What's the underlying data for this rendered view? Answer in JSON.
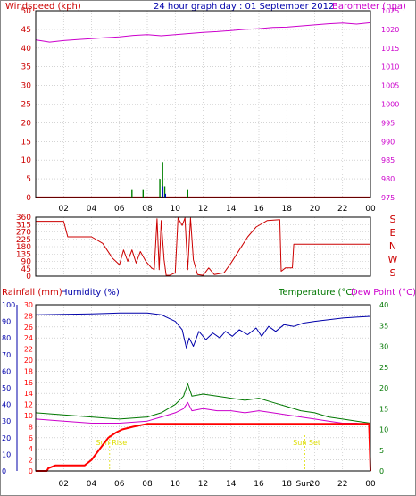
{
  "colors": {
    "wind": "#cc0000",
    "gust": "#008000",
    "wind_avg": "#0000cc",
    "barometer": "#cc00cc",
    "direction": "#cc0000",
    "rainfall": "#ff0000",
    "humidity": "#0000aa",
    "temperature": "#007700",
    "dewpoint": "#cc00cc",
    "sun": "#dddd00",
    "grid": "#bbbbbb",
    "axis": "#000000"
  },
  "chart_data": [
    {
      "type": "line",
      "title": "24 hour graph day : 01 September 2012",
      "left_axis_label": "Windspeed (kph)",
      "right_axis_label": "Barometer (hpa)",
      "x_ticks": [
        "02",
        "04",
        "06",
        "08",
        "10",
        "12",
        "14",
        "16",
        "18",
        "20",
        "22",
        "00"
      ],
      "y_left_ticks": [
        0,
        5,
        10,
        15,
        20,
        25,
        30,
        35,
        40,
        45,
        50
      ],
      "y_left_range": [
        0,
        50
      ],
      "y_right_ticks": [
        975,
        980,
        985,
        990,
        995,
        1000,
        1005,
        1010,
        1015,
        1020,
        1025
      ],
      "y_right_range": [
        975,
        1025
      ],
      "grid": true,
      "barometer": [
        {
          "x": 0,
          "y": 1017.2
        },
        {
          "x": 1,
          "y": 1016.6
        },
        {
          "x": 2,
          "y": 1017.0
        },
        {
          "x": 3,
          "y": 1017.3
        },
        {
          "x": 4,
          "y": 1017.5
        },
        {
          "x": 5,
          "y": 1017.8
        },
        {
          "x": 6,
          "y": 1018.0
        },
        {
          "x": 7,
          "y": 1018.4
        },
        {
          "x": 8,
          "y": 1018.6
        },
        {
          "x": 9,
          "y": 1018.3
        },
        {
          "x": 10,
          "y": 1018.6
        },
        {
          "x": 11,
          "y": 1018.9
        },
        {
          "x": 12,
          "y": 1019.2
        },
        {
          "x": 13,
          "y": 1019.4
        },
        {
          "x": 14,
          "y": 1019.7
        },
        {
          "x": 15,
          "y": 1020.0
        },
        {
          "x": 16,
          "y": 1020.2
        },
        {
          "x": 17,
          "y": 1020.5
        },
        {
          "x": 18,
          "y": 1020.6
        },
        {
          "x": 19,
          "y": 1020.9
        },
        {
          "x": 20,
          "y": 1021.2
        },
        {
          "x": 21,
          "y": 1021.5
        },
        {
          "x": 22,
          "y": 1021.7
        },
        {
          "x": 23,
          "y": 1021.4
        },
        {
          "x": 24,
          "y": 1021.8
        }
      ],
      "wind_gust_peaks": [
        {
          "x": 6.9,
          "y": 2
        },
        {
          "x": 7.7,
          "y": 2
        },
        {
          "x": 8.9,
          "y": 5
        },
        {
          "x": 9.1,
          "y": 9.5
        },
        {
          "x": 9.25,
          "y": 3
        },
        {
          "x": 10.9,
          "y": 2
        }
      ],
      "wind_avg_peaks": [
        {
          "x": 9.1,
          "y": 3
        },
        {
          "x": 9.3,
          "y": 1
        }
      ]
    },
    {
      "type": "line",
      "y_ticks": [
        0,
        45,
        90,
        135,
        180,
        225,
        270,
        315,
        360
      ],
      "y_range": [
        0,
        360
      ],
      "right_labels": [
        "S",
        "E",
        "N",
        "W",
        "S"
      ],
      "direction": [
        {
          "x": 0,
          "y": 335
        },
        {
          "x": 2.0,
          "y": 335
        },
        {
          "x": 2.3,
          "y": 240
        },
        {
          "x": 4.0,
          "y": 240
        },
        {
          "x": 4.8,
          "y": 200
        },
        {
          "x": 5.5,
          "y": 110
        },
        {
          "x": 6.0,
          "y": 70
        },
        {
          "x": 6.3,
          "y": 160
        },
        {
          "x": 6.6,
          "y": 90
        },
        {
          "x": 6.9,
          "y": 160
        },
        {
          "x": 7.2,
          "y": 80
        },
        {
          "x": 7.5,
          "y": 150
        },
        {
          "x": 7.9,
          "y": 90
        },
        {
          "x": 8.3,
          "y": 50
        },
        {
          "x": 8.5,
          "y": 40
        },
        {
          "x": 8.7,
          "y": 350
        },
        {
          "x": 8.85,
          "y": 40
        },
        {
          "x": 9.0,
          "y": 340
        },
        {
          "x": 9.2,
          "y": 100
        },
        {
          "x": 9.35,
          "y": 5
        },
        {
          "x": 9.6,
          "y": 5
        },
        {
          "x": 10.0,
          "y": 20
        },
        {
          "x": 10.2,
          "y": 355
        },
        {
          "x": 10.5,
          "y": 310
        },
        {
          "x": 10.7,
          "y": 355
        },
        {
          "x": 10.9,
          "y": 40
        },
        {
          "x": 11.1,
          "y": 355
        },
        {
          "x": 11.3,
          "y": 100
        },
        {
          "x": 11.6,
          "y": 10
        },
        {
          "x": 12.0,
          "y": 5
        },
        {
          "x": 12.4,
          "y": 50
        },
        {
          "x": 12.8,
          "y": 10
        },
        {
          "x": 13.5,
          "y": 20
        },
        {
          "x": 14.0,
          "y": 80
        },
        {
          "x": 14.6,
          "y": 160
        },
        {
          "x": 15.2,
          "y": 240
        },
        {
          "x": 15.8,
          "y": 300
        },
        {
          "x": 16.6,
          "y": 340
        },
        {
          "x": 17.5,
          "y": 345
        },
        {
          "x": 17.6,
          "y": 30
        },
        {
          "x": 17.9,
          "y": 50
        },
        {
          "x": 18.4,
          "y": 50
        },
        {
          "x": 18.5,
          "y": 195
        },
        {
          "x": 24.0,
          "y": 195
        }
      ]
    },
    {
      "type": "line",
      "left_axis_label": "Rainfall (mm)",
      "left2_axis_label": "Humidity (%)",
      "right_axis_label": "Temperature (°C)",
      "right2_axis_label": "Dew Point (°C)",
      "rain_ticks": [
        0,
        2,
        4,
        6,
        8,
        10,
        12,
        14,
        16,
        18,
        20,
        22,
        24,
        26,
        28,
        30
      ],
      "rain_range": [
        0,
        30
      ],
      "humidity_ticks": [
        0,
        10,
        20,
        30,
        40,
        50,
        60,
        70,
        80,
        90,
        100
      ],
      "humidity_range": [
        0,
        100
      ],
      "temp_ticks": [
        0,
        5,
        10,
        15,
        20,
        25,
        30,
        35,
        40
      ],
      "temp_range": [
        0,
        40
      ],
      "annotations": [
        "Sun Rise",
        "Sun Set"
      ],
      "sunrise_x": 5.3,
      "sunset_x": 19.3,
      "x_bottom_extra": [
        "18",
        "Sun",
        "20"
      ],
      "rainfall": [
        {
          "x": 0,
          "y": 0
        },
        {
          "x": 0.8,
          "y": 0
        },
        {
          "x": 0.9,
          "y": 0.5
        },
        {
          "x": 1.4,
          "y": 1
        },
        {
          "x": 3.5,
          "y": 1
        },
        {
          "x": 4.0,
          "y": 2
        },
        {
          "x": 4.3,
          "y": 3
        },
        {
          "x": 4.6,
          "y": 4
        },
        {
          "x": 4.9,
          "y": 5
        },
        {
          "x": 5.2,
          "y": 6
        },
        {
          "x": 5.5,
          "y": 6.5
        },
        {
          "x": 5.8,
          "y": 7
        },
        {
          "x": 6.2,
          "y": 7.5
        },
        {
          "x": 7.0,
          "y": 8
        },
        {
          "x": 8.0,
          "y": 8.5
        },
        {
          "x": 23.9,
          "y": 8.5
        },
        {
          "x": 24.0,
          "y": 0
        }
      ],
      "humidity": [
        {
          "x": 0,
          "y": 94
        },
        {
          "x": 4,
          "y": 94.5
        },
        {
          "x": 6,
          "y": 95
        },
        {
          "x": 8,
          "y": 95
        },
        {
          "x": 9,
          "y": 94
        },
        {
          "x": 10,
          "y": 90
        },
        {
          "x": 10.5,
          "y": 85
        },
        {
          "x": 10.8,
          "y": 74
        },
        {
          "x": 11.0,
          "y": 80
        },
        {
          "x": 11.3,
          "y": 75
        },
        {
          "x": 11.7,
          "y": 84
        },
        {
          "x": 12.2,
          "y": 79
        },
        {
          "x": 12.7,
          "y": 83
        },
        {
          "x": 13.2,
          "y": 80
        },
        {
          "x": 13.6,
          "y": 84
        },
        {
          "x": 14.1,
          "y": 81
        },
        {
          "x": 14.6,
          "y": 85
        },
        {
          "x": 15.2,
          "y": 82
        },
        {
          "x": 15.8,
          "y": 86
        },
        {
          "x": 16.2,
          "y": 81
        },
        {
          "x": 16.7,
          "y": 87
        },
        {
          "x": 17.2,
          "y": 84
        },
        {
          "x": 17.8,
          "y": 88
        },
        {
          "x": 18.5,
          "y": 87
        },
        {
          "x": 19.2,
          "y": 89
        },
        {
          "x": 20,
          "y": 90
        },
        {
          "x": 21,
          "y": 91
        },
        {
          "x": 22,
          "y": 92
        },
        {
          "x": 23,
          "y": 92.5
        },
        {
          "x": 24,
          "y": 93
        }
      ],
      "temperature": [
        {
          "x": 0,
          "y": 14
        },
        {
          "x": 2,
          "y": 13.5
        },
        {
          "x": 4,
          "y": 13
        },
        {
          "x": 6,
          "y": 12.5
        },
        {
          "x": 8,
          "y": 13
        },
        {
          "x": 9,
          "y": 14
        },
        {
          "x": 10,
          "y": 16
        },
        {
          "x": 10.6,
          "y": 18
        },
        {
          "x": 10.9,
          "y": 21
        },
        {
          "x": 11.2,
          "y": 18
        },
        {
          "x": 12,
          "y": 18.5
        },
        {
          "x": 13,
          "y": 18
        },
        {
          "x": 14,
          "y": 17.5
        },
        {
          "x": 15,
          "y": 17
        },
        {
          "x": 16,
          "y": 17.5
        },
        {
          "x": 17,
          "y": 16.5
        },
        {
          "x": 18,
          "y": 15.5
        },
        {
          "x": 19,
          "y": 14.5
        },
        {
          "x": 20,
          "y": 14
        },
        {
          "x": 21,
          "y": 13
        },
        {
          "x": 22,
          "y": 12.5
        },
        {
          "x": 23,
          "y": 12
        },
        {
          "x": 24,
          "y": 11.5
        }
      ],
      "dewpoint": [
        {
          "x": 0,
          "y": 12.5
        },
        {
          "x": 2,
          "y": 12
        },
        {
          "x": 4,
          "y": 11.5
        },
        {
          "x": 6,
          "y": 11.5
        },
        {
          "x": 8,
          "y": 12
        },
        {
          "x": 9,
          "y": 13
        },
        {
          "x": 10,
          "y": 14
        },
        {
          "x": 10.6,
          "y": 15
        },
        {
          "x": 10.9,
          "y": 16.5
        },
        {
          "x": 11.2,
          "y": 14.5
        },
        {
          "x": 12,
          "y": 15
        },
        {
          "x": 13,
          "y": 14.5
        },
        {
          "x": 14,
          "y": 14.5
        },
        {
          "x": 15,
          "y": 14
        },
        {
          "x": 16,
          "y": 14.5
        },
        {
          "x": 17,
          "y": 14
        },
        {
          "x": 18,
          "y": 13.5
        },
        {
          "x": 19,
          "y": 13
        },
        {
          "x": 20,
          "y": 12.5
        },
        {
          "x": 21,
          "y": 12
        },
        {
          "x": 22,
          "y": 11.5
        },
        {
          "x": 23,
          "y": 11.5
        },
        {
          "x": 24,
          "y": 11
        }
      ]
    }
  ]
}
